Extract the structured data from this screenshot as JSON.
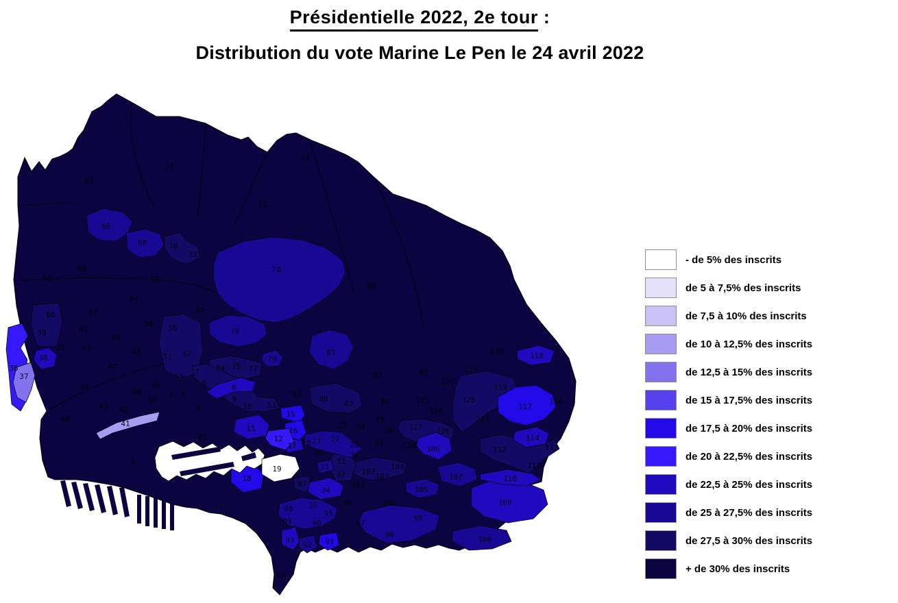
{
  "title": {
    "line1": "Présidentielle 2022, 2e tour",
    "line1_suffix": " :",
    "line2": "Distribution du vote Marine Le Pen le 24 avril 2022"
  },
  "legend": {
    "items": [
      {
        "label": "- de 5% des inscrits",
        "color": "#FFFFFF"
      },
      {
        "label": "de 5 à 7,5% des inscrits",
        "color": "#E5E0FA"
      },
      {
        "label": "de 7,5 à 10% des inscrits",
        "color": "#C9C1F5"
      },
      {
        "label": "de 10 à 12,5% des inscrits",
        "color": "#A89CF2"
      },
      {
        "label": "de 12,5 à 15% des inscrits",
        "color": "#8272EE"
      },
      {
        "label": "de 15 à 17,5% des inscrits",
        "color": "#5540EC"
      },
      {
        "label": "de 17,5 à 20% des inscrits",
        "color": "#2209E8"
      },
      {
        "label": "de 20 à 22,5% des inscrits",
        "color": "#3419FA"
      },
      {
        "label": "de 22,5 à 25% des inscrits",
        "color": "#1F0AC0"
      },
      {
        "label": "de 25 à 27,5% des inscrits",
        "color": "#180994"
      },
      {
        "label": "de 27,5 à 30% des inscrits",
        "color": "#130A66"
      },
      {
        "label": "+ de 30% des inscrits",
        "color": "#0B0440"
      }
    ]
  },
  "map": {
    "palette": [
      "#FFFFFF",
      "#E5E0FA",
      "#C9C1F5",
      "#A89CF2",
      "#8272EE",
      "#5540EC",
      "#3419FA",
      "#2209E8",
      "#1F0AC0",
      "#180994",
      "#130A66",
      "#0B0440"
    ],
    "base_color": "#0B0440",
    "region_label_color": "#000000",
    "region_fields": [
      "number",
      "x",
      "y",
      "category_index"
    ],
    "regions": [
      [
        "1",
        193,
        673,
        11
      ],
      [
        "2",
        250,
        575,
        10
      ],
      [
        "3",
        267,
        575,
        10
      ],
      [
        "4",
        289,
        595,
        11
      ],
      [
        "05",
        295,
        638,
        11
      ],
      [
        "6",
        298,
        558,
        10
      ],
      [
        "7",
        287,
        543,
        10
      ],
      [
        "8",
        341,
        565,
        8
      ],
      [
        "9",
        342,
        582,
        10
      ],
      [
        "10",
        361,
        593,
        10
      ],
      [
        "11",
        366,
        625,
        8
      ],
      [
        "12",
        406,
        640,
        6
      ],
      [
        "13",
        396,
        591,
        10
      ],
      [
        "14",
        433,
        575,
        11
      ],
      [
        "15",
        424,
        604,
        7
      ],
      [
        "16",
        428,
        628,
        7
      ],
      [
        "17",
        426,
        650,
        8
      ],
      [
        "18",
        360,
        698,
        7
      ],
      [
        "19",
        404,
        684,
        0
      ],
      [
        "20",
        447,
        646,
        9
      ],
      [
        "21",
        462,
        643,
        9
      ],
      [
        "22",
        489,
        640,
        9
      ],
      [
        "23",
        499,
        621,
        11
      ],
      [
        "24",
        526,
        623,
        11
      ],
      [
        "25",
        555,
        612,
        11
      ],
      [
        "26",
        567,
        628,
        11
      ],
      [
        "27",
        553,
        646,
        11
      ],
      [
        "28",
        517,
        649,
        11
      ],
      [
        "29",
        466,
        660,
        9
      ],
      [
        "30",
        517,
        664,
        9
      ],
      [
        "31",
        498,
        673,
        10
      ],
      [
        "32",
        497,
        692,
        10
      ],
      [
        "33",
        473,
        681,
        9
      ],
      [
        "34",
        475,
        715,
        8
      ],
      [
        "35",
        457,
        737,
        9
      ],
      [
        "36",
        20,
        537,
        6
      ],
      [
        "37",
        35,
        549,
        4
      ],
      [
        "38",
        63,
        522,
        8
      ],
      [
        "39",
        123,
        565,
        11
      ],
      [
        "40",
        95,
        611,
        11
      ],
      [
        "41",
        183,
        618,
        3
      ],
      [
        "42",
        181,
        598,
        11
      ],
      [
        "43",
        151,
        593,
        11
      ],
      [
        "44",
        200,
        572,
        11
      ],
      [
        "45",
        222,
        583,
        11
      ],
      [
        "46",
        228,
        561,
        11
      ],
      [
        "47",
        164,
        535,
        11
      ],
      [
        "48",
        199,
        513,
        11
      ],
      [
        "49",
        169,
        493,
        11
      ],
      [
        "50",
        217,
        472,
        11
      ],
      [
        "51",
        244,
        520,
        10
      ],
      [
        "52",
        273,
        516,
        10
      ],
      [
        "53",
        261,
        549,
        11
      ],
      [
        "54",
        322,
        537,
        10
      ],
      [
        "55",
        292,
        451,
        11
      ],
      [
        "56",
        252,
        478,
        10
      ],
      [
        "57",
        126,
        508,
        11
      ],
      [
        "58",
        88,
        507,
        11
      ],
      [
        "59",
        61,
        485,
        10
      ],
      [
        "60",
        74,
        459,
        10
      ],
      [
        "61",
        122,
        480,
        11
      ],
      [
        "62",
        136,
        455,
        11
      ],
      [
        "63",
        69,
        406,
        11
      ],
      [
        "64",
        195,
        436,
        11
      ],
      [
        "65",
        120,
        392,
        11
      ],
      [
        "66",
        155,
        330,
        9
      ],
      [
        "67",
        130,
        265,
        11
      ],
      [
        "68",
        208,
        354,
        9
      ],
      [
        "69",
        226,
        407,
        11
      ],
      [
        "70",
        253,
        359,
        10
      ],
      [
        "71",
        247,
        243,
        11
      ],
      [
        "72",
        281,
        371,
        10
      ],
      [
        "73",
        383,
        298,
        11
      ],
      [
        "74",
        445,
        230,
        11
      ],
      [
        "75",
        345,
        534,
        10
      ],
      [
        "76",
        343,
        483,
        9
      ],
      [
        "77",
        369,
        538,
        10
      ],
      [
        "78",
        403,
        393,
        9
      ],
      [
        "79",
        397,
        524,
        9
      ],
      [
        "80",
        472,
        582,
        10
      ],
      [
        "81",
        483,
        514,
        9
      ],
      [
        "82",
        509,
        589,
        10
      ],
      [
        "83",
        551,
        547,
        11
      ],
      [
        "84",
        562,
        586,
        11
      ],
      [
        "85",
        619,
        543,
        11
      ],
      [
        "86",
        542,
        417,
        11
      ],
      [
        "87",
        441,
        706,
        10
      ],
      [
        "88",
        421,
        742,
        9
      ],
      [
        "89",
        419,
        760,
        9
      ],
      [
        "90",
        462,
        763,
        9
      ],
      [
        "91",
        481,
        790,
        7
      ],
      [
        "92",
        448,
        795,
        9
      ],
      [
        "93",
        423,
        788,
        8
      ],
      [
        "94",
        410,
        838,
        11
      ],
      [
        "95",
        479,
        749,
        9
      ],
      [
        "96",
        508,
        734,
        11
      ],
      [
        "97",
        526,
        763,
        11
      ],
      [
        "98",
        568,
        780,
        9
      ],
      [
        "99",
        610,
        756,
        9
      ],
      [
        "100",
        567,
        734,
        11
      ],
      [
        "101",
        523,
        708,
        11
      ],
      [
        "102",
        537,
        688,
        10
      ],
      [
        "103",
        558,
        695,
        10
      ],
      [
        "104",
        580,
        681,
        10
      ],
      [
        "105",
        615,
        714,
        9
      ],
      [
        "106",
        632,
        655,
        8
      ],
      [
        "107",
        665,
        696,
        9
      ],
      [
        "108",
        707,
        787,
        9
      ],
      [
        "109",
        737,
        733,
        8
      ],
      [
        "110",
        744,
        698,
        8
      ],
      [
        "111",
        779,
        679,
        10
      ],
      [
        "112",
        729,
        656,
        10
      ],
      [
        "113",
        704,
        611,
        10
      ],
      [
        "114",
        777,
        639,
        8
      ],
      [
        "115",
        805,
        653,
        10
      ],
      [
        "116",
        811,
        586,
        11
      ],
      [
        "117",
        766,
        593,
        7
      ],
      [
        "118",
        783,
        519,
        8
      ],
      [
        "119",
        730,
        565,
        10
      ],
      [
        "120",
        725,
        513,
        11
      ],
      [
        "121",
        687,
        540,
        11
      ],
      [
        "122",
        653,
        557,
        11
      ],
      [
        "123",
        616,
        584,
        11
      ],
      [
        "124",
        636,
        599,
        11
      ],
      [
        "125",
        684,
        583,
        10
      ],
      [
        "126",
        647,
        629,
        10
      ],
      [
        "127",
        607,
        623,
        10
      ],
      [
        "128",
        597,
        650,
        10
      ]
    ]
  }
}
